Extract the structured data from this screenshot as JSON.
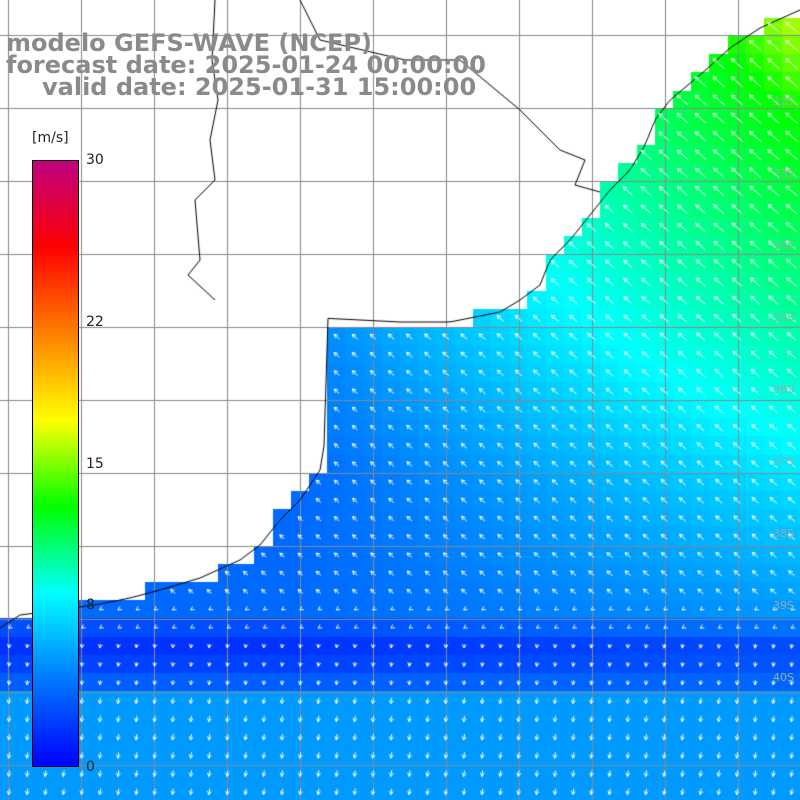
{
  "title": {
    "line1": "modelo GEFS-WAVE (NCEP)",
    "line2": "forecast date: 2025-01-24 00:00:00",
    "line3": "valid date: 2025-01-31 15:00:00"
  },
  "colorbar": {
    "units": "[m/s]",
    "ticks": [
      {
        "label": "30",
        "value": 30
      },
      {
        "label": "22",
        "value": 22
      },
      {
        "label": "15",
        "value": 15
      },
      {
        "label": "8",
        "value": 8
      },
      {
        "label": "0",
        "value": 0
      }
    ],
    "colors": [
      "#0000ff",
      "#0078ff",
      "#00ffff",
      "#00ff00",
      "#ffff00",
      "#ff8000",
      "#ff0000",
      "#c00080"
    ]
  },
  "lat_labels": [
    "32S",
    "33S",
    "34S",
    "35S",
    "36S",
    "37S",
    "38S",
    "39S",
    "40S"
  ],
  "colors": {
    "land": "#ffffff",
    "grid": "#888888",
    "coast": "#000000",
    "arrow": "#ffffff"
  }
}
